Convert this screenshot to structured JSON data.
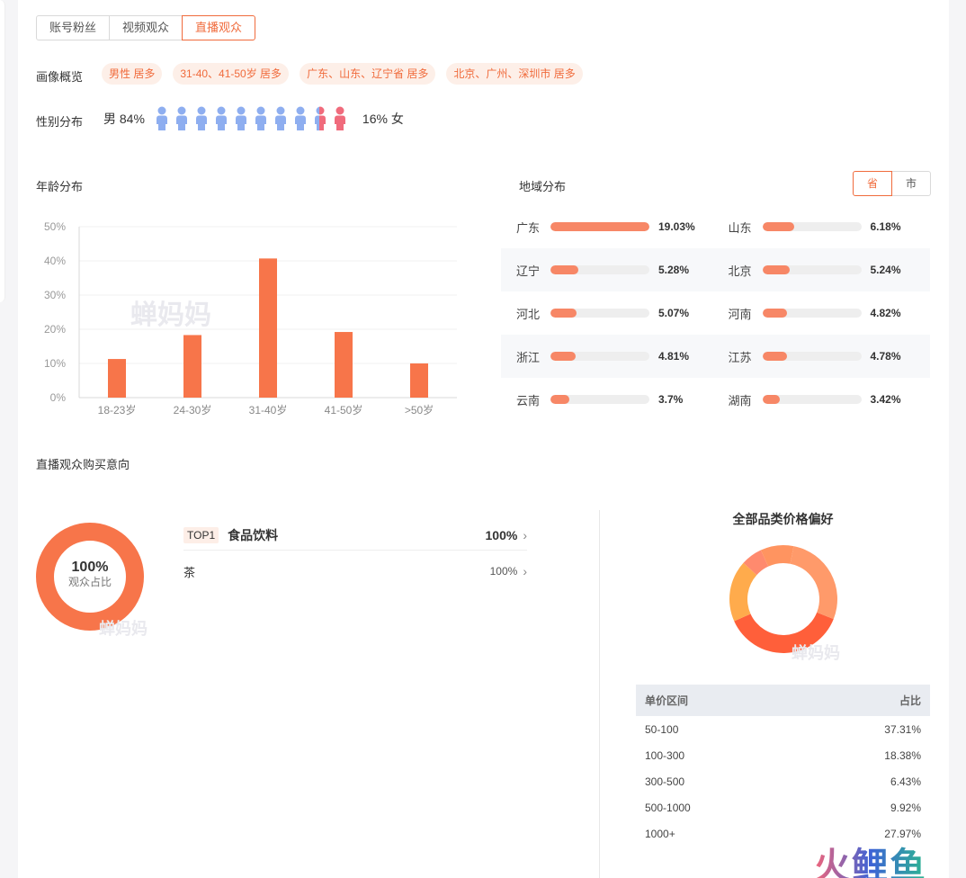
{
  "tabs": [
    {
      "label": "账号粉丝",
      "active": false
    },
    {
      "label": "视频观众",
      "active": false
    },
    {
      "label": "直播观众",
      "active": true
    }
  ],
  "portrait": {
    "label": "画像概览",
    "tags": [
      "男性 居多",
      "31-40、41-50岁 居多",
      "广东、山东、辽宁省 居多",
      "北京、广州、深圳市 居多"
    ]
  },
  "gender": {
    "label": "性别分布",
    "male_text": "男 84%",
    "female_text": "16% 女",
    "male_share": 0.84,
    "male_color": "#8eaef0",
    "female_color": "#f06b7c"
  },
  "age": {
    "title": "年龄分布"
  },
  "chart_data": {
    "type": "bar",
    "categories": [
      "18-23岁",
      "24-30岁",
      "31-40岁",
      "41-50岁",
      ">50岁"
    ],
    "values": [
      11.3,
      18.3,
      40.7,
      19.2,
      10.0
    ],
    "yticks": [
      "0%",
      "10%",
      "20%",
      "30%",
      "40%",
      "50%"
    ],
    "ylim": [
      0,
      50
    ],
    "grid": true,
    "color": "#f7754a"
  },
  "region": {
    "title": "地域分布",
    "toggle": [
      {
        "label": "省",
        "active": true
      },
      {
        "label": "市",
        "active": false
      }
    ],
    "rows": [
      [
        {
          "name": "广东",
          "value": "19.03%",
          "pct": 19.03
        },
        {
          "name": "山东",
          "value": "6.18%",
          "pct": 6.18
        }
      ],
      [
        {
          "name": "辽宁",
          "value": "5.28%",
          "pct": 5.28
        },
        {
          "name": "北京",
          "value": "5.24%",
          "pct": 5.24
        }
      ],
      [
        {
          "name": "河北",
          "value": "5.07%",
          "pct": 5.07
        },
        {
          "name": "河南",
          "value": "4.82%",
          "pct": 4.82
        }
      ],
      [
        {
          "name": "浙江",
          "value": "4.81%",
          "pct": 4.81
        },
        {
          "name": "江苏",
          "value": "4.78%",
          "pct": 4.78
        }
      ],
      [
        {
          "name": "云南",
          "value": "3.7%",
          "pct": 3.7
        },
        {
          "name": "湖南",
          "value": "3.42%",
          "pct": 3.42
        }
      ]
    ]
  },
  "intent": {
    "title": "直播观众购买意向",
    "donut_big": "100%",
    "donut_small": "观众占比",
    "donut_color": "#f7754a",
    "top_badge": "TOP1",
    "top_category": "食品饮料",
    "top_pct": "100%",
    "sub_name": "茶",
    "sub_pct": "100%"
  },
  "price": {
    "title": "全部品类价格偏好",
    "head_left": "单价区间",
    "head_right": "占比",
    "rows": [
      {
        "range": "50-100",
        "pct": "37.31%",
        "value": 37.31,
        "color": "#ff5f3a"
      },
      {
        "range": "100-300",
        "pct": "18.38%",
        "value": 18.38,
        "color": "#ffab4c"
      },
      {
        "range": "300-500",
        "pct": "6.43%",
        "value": 6.43,
        "color": "#ff8a6e"
      },
      {
        "range": "500-1000",
        "pct": "9.92%",
        "value": 9.92,
        "color": "#ff9460"
      },
      {
        "range": "1000+",
        "pct": "27.97%",
        "value": 27.97,
        "color": "#ff9a6a"
      }
    ]
  },
  "watermark": "蝉妈妈",
  "corner_logo": "火鲤鱼"
}
